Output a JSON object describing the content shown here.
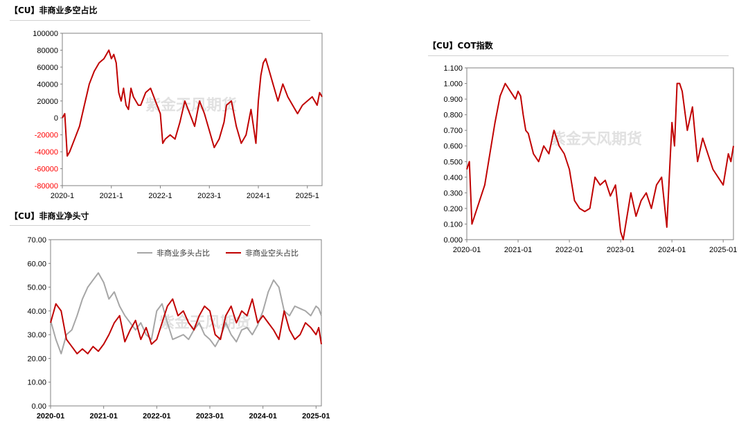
{
  "titles": {
    "chart1": "【CU】非商业多空占比",
    "chart2": "【CU】非商业净头寸",
    "chart3": "【CU】COT指数"
  },
  "watermark": "紫金天风期货",
  "colors": {
    "red": "#c00000",
    "gray": "#a6a6a6",
    "neg_label": "#ff0000"
  },
  "chart_data": [
    {
      "type": "line",
      "title": "【CU】非商业多空占比",
      "x_ticks": [
        "2020-1",
        "2021-1",
        "2022-1",
        "2023-1",
        "2024-1",
        "2025-1"
      ],
      "y_ticks": [
        "100000",
        "80000",
        "60000",
        "40000",
        "20000",
        "0",
        "-20000",
        "-40000",
        "-60000",
        "-80000"
      ],
      "ylim": [
        -80000,
        100000
      ],
      "xlim": [
        2020.0,
        2025.3
      ],
      "grid": false,
      "series": [
        {
          "color": "#c00000",
          "x": [
            2020.0,
            2020.05,
            2020.1,
            2020.15,
            2020.25,
            2020.35,
            2020.45,
            2020.55,
            2020.65,
            2020.75,
            2020.85,
            2020.95,
            2021.0,
            2021.05,
            2021.1,
            2021.15,
            2021.2,
            2021.25,
            2021.3,
            2021.35,
            2021.4,
            2021.45,
            2021.5,
            2021.55,
            2021.6,
            2021.7,
            2021.8,
            2021.9,
            2022.0,
            2022.05,
            2022.1,
            2022.2,
            2022.3,
            2022.4,
            2022.5,
            2022.6,
            2022.7,
            2022.8,
            2022.9,
            2023.0,
            2023.1,
            2023.2,
            2023.3,
            2023.35,
            2023.45,
            2023.55,
            2023.65,
            2023.75,
            2023.85,
            2023.95,
            2024.0,
            2024.05,
            2024.1,
            2024.15,
            2024.2,
            2024.3,
            2024.4,
            2024.5,
            2024.6,
            2024.7,
            2024.8,
            2024.9,
            2025.0,
            2025.1,
            2025.2,
            2025.25,
            2025.3
          ],
          "y": [
            0,
            5000,
            -45000,
            -40000,
            -25000,
            -10000,
            15000,
            40000,
            55000,
            65000,
            70000,
            80000,
            70000,
            75000,
            65000,
            30000,
            20000,
            35000,
            15000,
            10000,
            35000,
            25000,
            20000,
            15000,
            15000,
            30000,
            35000,
            20000,
            5000,
            -30000,
            -25000,
            -20000,
            -25000,
            -5000,
            20000,
            5000,
            -10000,
            20000,
            5000,
            -15000,
            -35000,
            -25000,
            -5000,
            15000,
            20000,
            -10000,
            -30000,
            -20000,
            10000,
            -30000,
            20000,
            50000,
            65000,
            70000,
            60000,
            40000,
            20000,
            40000,
            25000,
            15000,
            5000,
            15000,
            20000,
            25000,
            15000,
            30000,
            25000
          ]
        }
      ]
    },
    {
      "type": "line",
      "title": "【CU】非商业净头寸",
      "x_ticks": [
        "2020-01",
        "2021-01",
        "2022-01",
        "2023-01",
        "2024-01",
        "2025-01"
      ],
      "y_ticks": [
        "70.00",
        "60.00",
        "50.00",
        "40.00",
        "30.00",
        "20.00",
        "10.00",
        "0.00"
      ],
      "ylim": [
        0,
        70
      ],
      "xlim": [
        2020.0,
        2025.1
      ],
      "grid": false,
      "legend": "top-right",
      "series": [
        {
          "name": "非商业多头占比",
          "color": "#a6a6a6",
          "x": [
            2020.0,
            2020.1,
            2020.2,
            2020.3,
            2020.4,
            2020.5,
            2020.6,
            2020.7,
            2020.8,
            2020.9,
            2021.0,
            2021.1,
            2021.2,
            2021.3,
            2021.4,
            2021.5,
            2021.6,
            2021.7,
            2021.8,
            2021.9,
            2022.0,
            2022.1,
            2022.2,
            2022.3,
            2022.4,
            2022.5,
            2022.6,
            2022.7,
            2022.8,
            2022.9,
            2023.0,
            2023.1,
            2023.2,
            2023.3,
            2023.4,
            2023.5,
            2023.6,
            2023.7,
            2023.8,
            2023.9,
            2024.0,
            2024.1,
            2024.2,
            2024.3,
            2024.4,
            2024.5,
            2024.6,
            2024.7,
            2024.8,
            2024.9,
            2025.0,
            2025.05,
            2025.1
          ],
          "y": [
            36,
            28,
            22,
            30,
            32,
            38,
            45,
            50,
            53,
            56,
            52,
            45,
            48,
            42,
            38,
            35,
            32,
            35,
            30,
            28,
            40,
            43,
            35,
            28,
            29,
            30,
            28,
            32,
            35,
            30,
            28,
            25,
            29,
            35,
            30,
            27,
            32,
            33,
            30,
            34,
            40,
            48,
            53,
            50,
            40,
            38,
            42,
            41,
            40,
            38,
            42,
            41,
            38
          ]
        },
        {
          "name": "非商业空头占比",
          "color": "#c00000",
          "x": [
            2020.0,
            2020.1,
            2020.2,
            2020.3,
            2020.4,
            2020.5,
            2020.6,
            2020.7,
            2020.8,
            2020.9,
            2021.0,
            2021.1,
            2021.2,
            2021.3,
            2021.4,
            2021.5,
            2021.6,
            2021.7,
            2021.8,
            2021.9,
            2022.0,
            2022.1,
            2022.2,
            2022.3,
            2022.4,
            2022.5,
            2022.6,
            2022.7,
            2022.8,
            2022.9,
            2023.0,
            2023.1,
            2023.2,
            2023.3,
            2023.4,
            2023.5,
            2023.6,
            2023.7,
            2023.8,
            2023.9,
            2024.0,
            2024.1,
            2024.2,
            2024.3,
            2024.4,
            2024.5,
            2024.6,
            2024.7,
            2024.8,
            2024.9,
            2025.0,
            2025.05,
            2025.1
          ],
          "y": [
            35,
            43,
            40,
            28,
            25,
            22,
            24,
            22,
            25,
            23,
            26,
            30,
            35,
            38,
            27,
            32,
            36,
            28,
            33,
            26,
            28,
            35,
            42,
            45,
            38,
            40,
            35,
            32,
            38,
            42,
            40,
            30,
            28,
            38,
            42,
            35,
            40,
            38,
            45,
            35,
            38,
            35,
            32,
            28,
            40,
            32,
            28,
            30,
            35,
            33,
            30,
            33,
            26
          ]
        }
      ]
    },
    {
      "type": "line",
      "title": "【CU】COT指数",
      "x_ticks": [
        "2020-01",
        "2021-01",
        "2022-01",
        "2023-01",
        "2024-01",
        "2025-01"
      ],
      "y_ticks": [
        "1.100",
        "1.000",
        "0.900",
        "0.800",
        "0.700",
        "0.600",
        "0.500",
        "0.400",
        "0.300",
        "0.200",
        "0.100",
        "0.000"
      ],
      "ylim": [
        0,
        1.1
      ],
      "xlim": [
        2020.0,
        2025.2
      ],
      "grid": false,
      "series": [
        {
          "color": "#c00000",
          "x": [
            2020.0,
            2020.05,
            2020.1,
            2020.15,
            2020.25,
            2020.35,
            2020.45,
            2020.55,
            2020.65,
            2020.75,
            2020.85,
            2020.95,
            2021.0,
            2021.05,
            2021.1,
            2021.15,
            2021.2,
            2021.3,
            2021.4,
            2021.5,
            2021.6,
            2021.7,
            2021.8,
            2021.9,
            2022.0,
            2022.1,
            2022.2,
            2022.3,
            2022.4,
            2022.5,
            2022.6,
            2022.7,
            2022.8,
            2022.9,
            2023.0,
            2023.05,
            2023.1,
            2023.2,
            2023.3,
            2023.4,
            2023.5,
            2023.6,
            2023.7,
            2023.8,
            2023.9,
            2024.0,
            2024.05,
            2024.1,
            2024.15,
            2024.2,
            2024.3,
            2024.4,
            2024.5,
            2024.6,
            2024.7,
            2024.8,
            2024.9,
            2025.0,
            2025.1,
            2025.15,
            2025.2
          ],
          "y": [
            0.45,
            0.5,
            0.1,
            0.15,
            0.25,
            0.35,
            0.55,
            0.75,
            0.92,
            1.0,
            0.95,
            0.9,
            0.95,
            0.92,
            0.8,
            0.7,
            0.68,
            0.55,
            0.5,
            0.6,
            0.55,
            0.7,
            0.6,
            0.55,
            0.45,
            0.25,
            0.2,
            0.18,
            0.2,
            0.4,
            0.35,
            0.38,
            0.28,
            0.35,
            0.05,
            0.0,
            0.1,
            0.3,
            0.15,
            0.25,
            0.3,
            0.2,
            0.35,
            0.4,
            0.08,
            0.75,
            0.6,
            1.0,
            1.0,
            0.95,
            0.7,
            0.85,
            0.5,
            0.65,
            0.55,
            0.45,
            0.4,
            0.35,
            0.55,
            0.5,
            0.6
          ]
        }
      ]
    }
  ]
}
